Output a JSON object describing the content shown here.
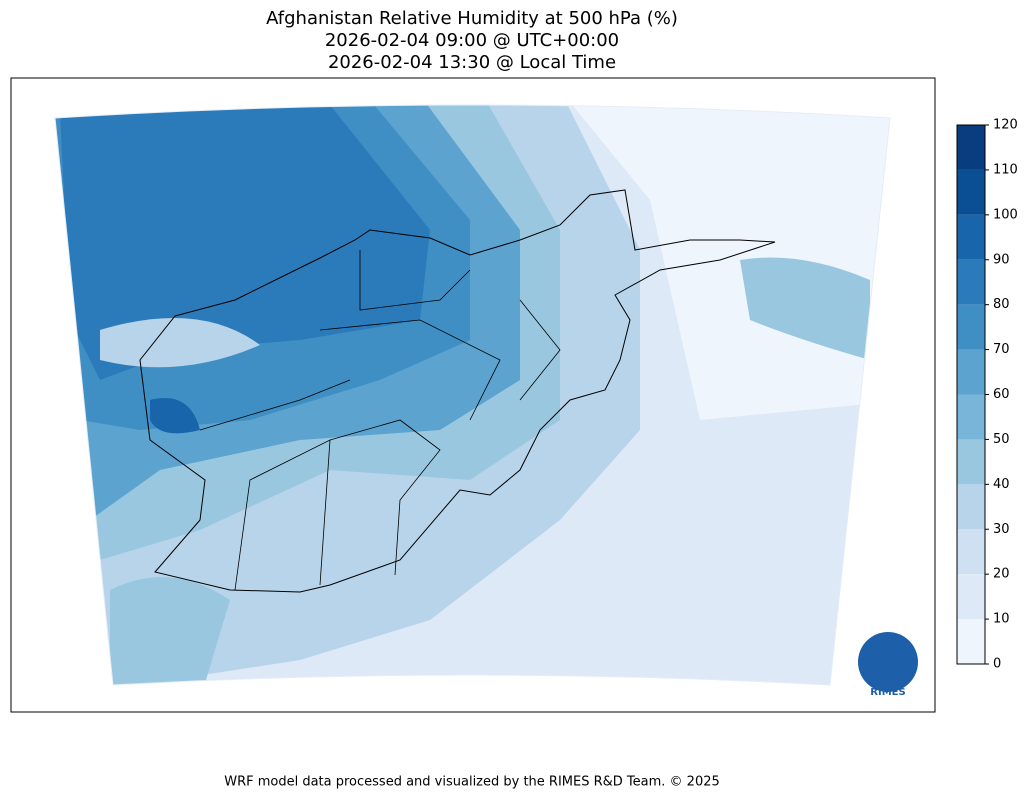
{
  "title": [
    "Afghanistan Relative Humidity at 500 hPa (%)",
    "2026-02-04 09:00 @ UTC+00:00",
    "2026-02-04 13:30 @ Local Time"
  ],
  "colorbar": {
    "ticks": [
      0,
      10,
      20,
      30,
      40,
      50,
      60,
      70,
      80,
      90,
      100,
      110,
      120
    ],
    "colors": [
      "#eff5fc",
      "#dde9f6",
      "#cee0f2",
      "#b7d4ea",
      "#9ac7e0",
      "#79b5d9",
      "#5ca3d0",
      "#3f8fc5",
      "#2b7bba",
      "#1865ab",
      "#0a4f93",
      "#083d7f"
    ]
  },
  "logo": "RIMES",
  "footer": "WRF model data processed and visualized by the RIMES R&D Team. © 2025"
}
